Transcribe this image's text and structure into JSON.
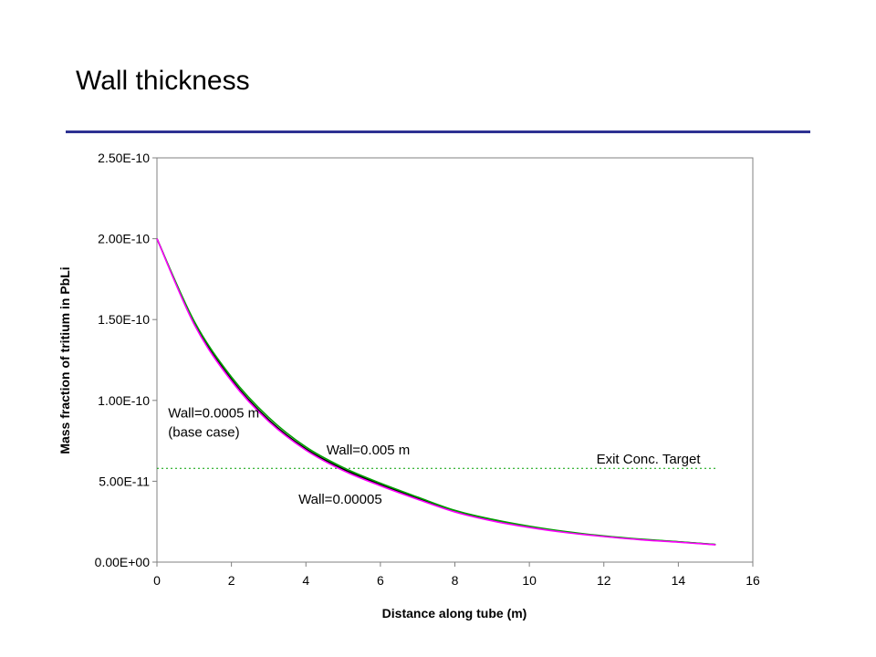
{
  "slide": {
    "title": "Wall thickness",
    "rule_color": "#2e3192"
  },
  "chart_data": {
    "type": "line",
    "title": "",
    "xlabel": "Distance along tube (m)",
    "ylabel": "Mass fraction of tritium in PbLi",
    "xlim": [
      0,
      16
    ],
    "ylim": [
      0,
      2.5e-10
    ],
    "xticks": [
      0,
      2,
      4,
      6,
      8,
      10,
      12,
      14,
      16
    ],
    "xtick_labels": [
      "0",
      "2",
      "4",
      "6",
      "8",
      "10",
      "12",
      "14",
      "16"
    ],
    "yticks": [
      0,
      5e-11,
      1e-10,
      1.5e-10,
      2e-10,
      2.5e-10
    ],
    "ytick_labels": [
      "0.00E+00",
      "5.00E-11",
      "1.00E-10",
      "1.50E-10",
      "2.00E-10",
      "2.50E-10"
    ],
    "grid": false,
    "legend": "none",
    "x": [
      0,
      1,
      2,
      3,
      4,
      5,
      6,
      7,
      8,
      9,
      10,
      11,
      12,
      13,
      14,
      15
    ],
    "series": [
      {
        "name": "Wall=0.0005 m (base case)",
        "color": "#000000",
        "values": [
          2e-10,
          1.48e-10,
          1.13e-10,
          8.8e-11,
          7e-11,
          5.75e-11,
          4.8e-11,
          3.95e-11,
          3.15e-11,
          2.6e-11,
          2.18e-11,
          1.85e-11,
          1.6e-11,
          1.4e-11,
          1.25e-11,
          1.08e-11
        ]
      },
      {
        "name": "Wall=0.005 m",
        "color": "#00a000",
        "values": [
          2e-10,
          1.49e-10,
          1.145e-10,
          8.95e-11,
          7.12e-11,
          5.85e-11,
          4.88e-11,
          4.02e-11,
          3.2e-11,
          2.65e-11,
          2.22e-11,
          1.88e-11,
          1.62e-11,
          1.42e-11,
          1.26e-11,
          1.09e-11
        ]
      },
      {
        "name": "Wall=0.00005",
        "color": "#ff00ff",
        "values": [
          2e-10,
          1.47e-10,
          1.12e-10,
          8.7e-11,
          6.92e-11,
          5.66e-11,
          4.72e-11,
          3.88e-11,
          3.1e-11,
          2.55e-11,
          2.14e-11,
          1.82e-11,
          1.58e-11,
          1.38e-11,
          1.23e-11,
          1.07e-11
        ]
      }
    ],
    "target": {
      "label": "Exit Conc. Target",
      "value": 5.8e-11,
      "x_range": [
        0,
        15
      ],
      "color": "#00a000"
    },
    "annotations": [
      {
        "lines": [
          "Wall=0.0005 m",
          "(base case)"
        ],
        "x": 0.3,
        "y": 8.95e-11
      },
      {
        "lines": [
          "Wall=0.005 m"
        ],
        "x": 4.55,
        "y": 6.65e-11
      },
      {
        "lines": [
          "Wall=0.00005"
        ],
        "x": 3.8,
        "y": 3.6e-11
      },
      {
        "lines": [
          "Exit Conc. Target"
        ],
        "x": 11.8,
        "y": 6.1e-11
      }
    ]
  }
}
